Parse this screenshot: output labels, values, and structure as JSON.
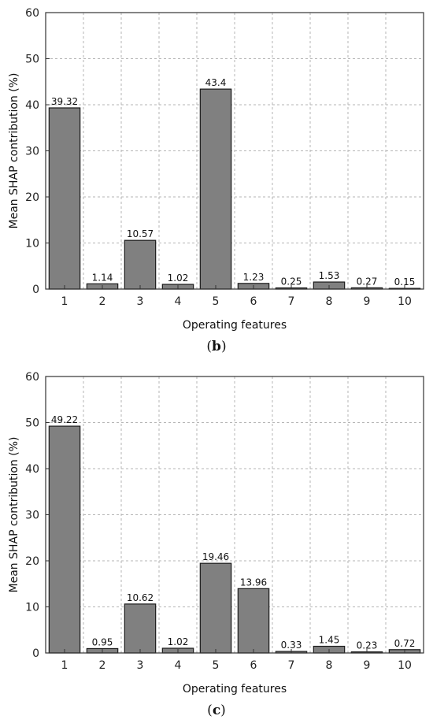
{
  "chart_data": [
    {
      "type": "bar",
      "panel_label": {
        "open": "(",
        "letter": "b",
        "close": ")"
      },
      "categories": [
        "1",
        "2",
        "3",
        "4",
        "5",
        "6",
        "7",
        "8",
        "9",
        "10"
      ],
      "values": [
        39.32,
        1.14,
        10.57,
        1.02,
        43.4,
        1.23,
        0.25,
        1.53,
        0.27,
        0.15
      ],
      "data_labels": [
        "39.32",
        "1.14",
        "10.57",
        "1.02",
        "43.4",
        "1.23",
        "0.25",
        "1.53",
        "0.27",
        "0.15"
      ],
      "xlabel": "Operating features",
      "ylabel": "Mean SHAP contribution (%)",
      "ylim": [
        0,
        60
      ],
      "yticks": [
        0,
        10,
        20,
        30,
        40,
        50,
        60
      ],
      "grid": true,
      "bar_color": "#808080"
    },
    {
      "type": "bar",
      "panel_label": {
        "open": "(",
        "letter": "c",
        "close": ")"
      },
      "categories": [
        "1",
        "2",
        "3",
        "4",
        "5",
        "6",
        "7",
        "8",
        "9",
        "10"
      ],
      "values": [
        49.22,
        0.95,
        10.62,
        1.02,
        19.46,
        13.96,
        0.33,
        1.45,
        0.23,
        0.72
      ],
      "data_labels": [
        "49.22",
        "0.95",
        "10.62",
        "1.02",
        "19.46",
        "13.96",
        "0.33",
        "1.45",
        "0.23",
        "0.72"
      ],
      "xlabel": "Operating features",
      "ylabel": "Mean SHAP contribution (%)",
      "ylim": [
        0,
        60
      ],
      "yticks": [
        0,
        10,
        20,
        30,
        40,
        50,
        60
      ],
      "grid": true,
      "bar_color": "#808080"
    }
  ]
}
